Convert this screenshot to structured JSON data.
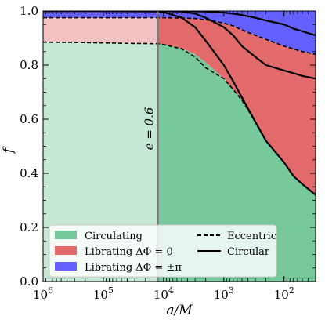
{
  "chart_data": {
    "type": "area",
    "title": "",
    "xlabel": "a/M",
    "ylabel": "f",
    "x_scale": "log",
    "x_reversed": true,
    "xlim": [
      1000000,
      30
    ],
    "ylim": [
      0,
      1
    ],
    "x_ticks": [
      {
        "value": 1000000,
        "label": "10^6"
      },
      {
        "value": 100000,
        "label": "10^5"
      },
      {
        "value": 10000,
        "label": "10^4"
      },
      {
        "value": 1000,
        "label": "10^3"
      },
      {
        "value": 100,
        "label": "10^2"
      }
    ],
    "y_ticks": [
      0.0,
      0.2,
      0.4,
      0.6,
      0.8,
      1.0
    ],
    "y_tick_labels": [
      "0.0",
      "0.2",
      "0.4",
      "0.6",
      "0.8",
      "1.0"
    ],
    "grid": false,
    "vline": {
      "x": 12500,
      "label": "e = 0.6"
    },
    "shaded_region": {
      "from": 1000000,
      "to": 12500,
      "note": "faded"
    },
    "x": [
      1000000,
      300000,
      100000,
      30000,
      12500,
      10000,
      5000,
      3000,
      2000,
      1000,
      700,
      500,
      300,
      200,
      100,
      70,
      50,
      30
    ],
    "series": [
      {
        "name": "Circulating",
        "role": "area",
        "color": "#77c99b",
        "faded_color": "#c5e7d3",
        "values": [
          0.885,
          0.884,
          0.882,
          0.88,
          0.879,
          0.876,
          0.862,
          0.84,
          0.81,
          0.75,
          0.71,
          0.67,
          0.59,
          0.52,
          0.44,
          0.39,
          0.36,
          0.32
        ]
      },
      {
        "name": "Librating ΔΦ = 0",
        "role": "area",
        "color": "#e26a6a",
        "faded_color": "#f2c1c1",
        "values": [
          0.975,
          0.975,
          0.975,
          0.975,
          0.975,
          0.975,
          0.974,
          0.972,
          0.968,
          0.955,
          0.945,
          0.93,
          0.91,
          0.895,
          0.87,
          0.86,
          0.85,
          0.84
        ]
      },
      {
        "name": "Librating ΔΦ = ±π",
        "role": "area",
        "color": "#6460fe",
        "faded_color": "#6460fe",
        "values": [
          1,
          1,
          1,
          1,
          1,
          1,
          1,
          1,
          1,
          1,
          1,
          1,
          1,
          1,
          1,
          1,
          1,
          1
        ]
      },
      {
        "name": "Eccentric (inner)",
        "role": "line",
        "style": "dashed",
        "values": [
          0.885,
          0.884,
          0.882,
          0.88,
          0.879,
          0.876,
          0.86,
          0.83,
          0.79,
          0.75,
          0.71,
          0.67,
          0.59,
          0.52,
          0.44,
          0.39,
          0.36,
          0.32
        ]
      },
      {
        "name": "Eccentric (outer)",
        "role": "line",
        "style": "dashed",
        "values": [
          0.975,
          0.975,
          0.975,
          0.975,
          0.975,
          0.975,
          0.974,
          0.972,
          0.968,
          0.955,
          0.945,
          0.93,
          0.91,
          0.895,
          0.87,
          0.86,
          0.85,
          0.84
        ]
      },
      {
        "name": "Circular (inner)",
        "role": "line",
        "style": "solid",
        "values": [
          1,
          1,
          1,
          0.999,
          0.998,
          0.996,
          0.975,
          0.94,
          0.89,
          0.8,
          0.74,
          0.68,
          0.59,
          0.52,
          0.44,
          0.39,
          0.36,
          0.32
        ]
      },
      {
        "name": "Circular (middle)",
        "role": "line",
        "style": "solid",
        "values": [
          1,
          1,
          1,
          1,
          1,
          1,
          0.998,
          0.99,
          0.975,
          0.94,
          0.91,
          0.87,
          0.83,
          0.8,
          0.78,
          0.77,
          0.76,
          0.75
        ]
      },
      {
        "name": "Circular (outer)",
        "role": "line",
        "style": "solid",
        "values": [
          1,
          1,
          1,
          1,
          1,
          1,
          1,
          0.999,
          0.998,
          0.994,
          0.99,
          0.985,
          0.975,
          0.965,
          0.95,
          0.935,
          0.925,
          0.91
        ]
      }
    ],
    "legend": {
      "placement": "lower-left",
      "columns": 2,
      "entries": [
        {
          "label": "Circulating",
          "type": "patch",
          "color": "#77c99b"
        },
        {
          "label": "Eccentric",
          "type": "line",
          "style": "dashed"
        },
        {
          "label": "Librating ΔΦ = 0",
          "type": "patch",
          "color": "#e26a6a"
        },
        {
          "label": "Circular",
          "type": "line",
          "style": "solid"
        },
        {
          "label": "Librating ΔΦ = ±π",
          "type": "patch",
          "color": "#6460fe"
        }
      ]
    }
  }
}
